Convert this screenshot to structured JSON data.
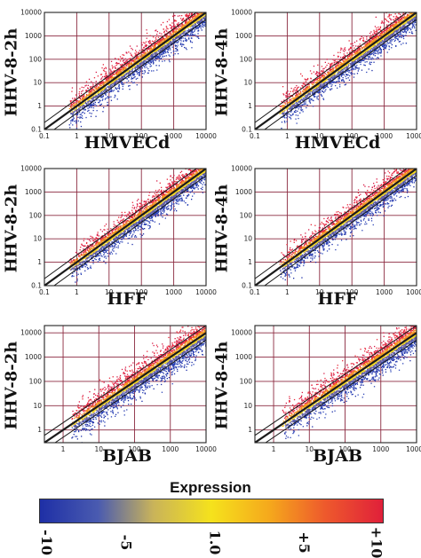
{
  "chart_data": [
    {
      "type": "scatter",
      "ylabel": "HHV-8-2h",
      "xlabel": "HMVECd",
      "xticks": [
        "0.1",
        "1",
        "10",
        "100",
        "1000",
        "10000"
      ],
      "yticks": [
        "0.1",
        "1",
        "10",
        "100",
        "1000",
        "10000"
      ],
      "xlim": [
        0.1,
        10000
      ],
      "ylim": [
        0.1,
        10000
      ],
      "scale": "log",
      "grid": true,
      "spread": 0.95,
      "reference_lines": [
        "y=x",
        "y=2x",
        "y=x/2"
      ]
    },
    {
      "type": "scatter",
      "ylabel": "HHV-8-4h",
      "xlabel": "HMVECd",
      "xticks": [
        "0.1",
        "1",
        "10",
        "100",
        "1000",
        "10000"
      ],
      "yticks": [
        "0.1",
        "1",
        "10",
        "100",
        "1000",
        "10000"
      ],
      "xlim": [
        0.1,
        10000
      ],
      "ylim": [
        0.1,
        10000
      ],
      "scale": "log",
      "grid": true,
      "spread": 0.9,
      "reference_lines": [
        "y=x",
        "y=2x",
        "y=x/2"
      ]
    },
    {
      "type": "scatter",
      "ylabel": "HHV-8-2h",
      "xlabel": "HFF",
      "xticks": [
        "0.1",
        "1",
        "10",
        "100",
        "1000",
        "10000"
      ],
      "yticks": [
        "0.1",
        "1",
        "10",
        "100",
        "1000",
        "10000"
      ],
      "xlim": [
        0.1,
        10000
      ],
      "ylim": [
        0.1,
        10000
      ],
      "scale": "log",
      "grid": true,
      "spread": 0.85,
      "reference_lines": [
        "y=x",
        "y=2x",
        "y=x/2"
      ]
    },
    {
      "type": "scatter",
      "ylabel": "HHV-8-4h",
      "xlabel": "HFF",
      "xticks": [
        "0.1",
        "1",
        "10",
        "100",
        "1000",
        "10000"
      ],
      "yticks": [
        "0.1",
        "1",
        "10",
        "100",
        "1000",
        "10000"
      ],
      "xlim": [
        0.1,
        10000
      ],
      "ylim": [
        0.1,
        10000
      ],
      "scale": "log",
      "grid": true,
      "spread": 0.85,
      "reference_lines": [
        "y=x",
        "y=2x",
        "y=x/2"
      ]
    },
    {
      "type": "scatter",
      "ylabel": "HHV-8-2h",
      "xlabel": "BJAB",
      "xticks": [
        "1",
        "10",
        "100",
        "1000",
        "10000"
      ],
      "yticks": [
        "1",
        "10",
        "100",
        "1000",
        "10000"
      ],
      "xlim": [
        0.3,
        10000
      ],
      "ylim": [
        0.3,
        20000
      ],
      "scale": "log",
      "grid": true,
      "spread": 0.95,
      "reference_lines": [
        "y=x",
        "y=2x",
        "y=x/2"
      ]
    },
    {
      "type": "scatter",
      "ylabel": "HHV-8-4h",
      "xlabel": "BJAB",
      "xticks": [
        "1",
        "10",
        "100",
        "1000",
        "10000"
      ],
      "yticks": [
        "1",
        "10",
        "100",
        "1000",
        "10000"
      ],
      "xlim": [
        0.3,
        10000
      ],
      "ylim": [
        0.3,
        20000
      ],
      "scale": "log",
      "grid": true,
      "spread": 0.9,
      "reference_lines": [
        "y=x",
        "y=2x",
        "y=x/2"
      ]
    }
  ],
  "legend": {
    "title": "Expression",
    "ticks": [
      {
        "label": "-10",
        "value": -10
      },
      {
        "label": "-5",
        "value": -5
      },
      {
        "label": "1.0",
        "value": 1
      },
      {
        "label": "+5",
        "value": 5
      },
      {
        "label": "+10",
        "value": 10
      }
    ],
    "colors": [
      "#1e2fa6",
      "#4a5bb0",
      "#c9b35a",
      "#f5e21c",
      "#f5a81c",
      "#ee5a2c",
      "#e0203a"
    ]
  }
}
